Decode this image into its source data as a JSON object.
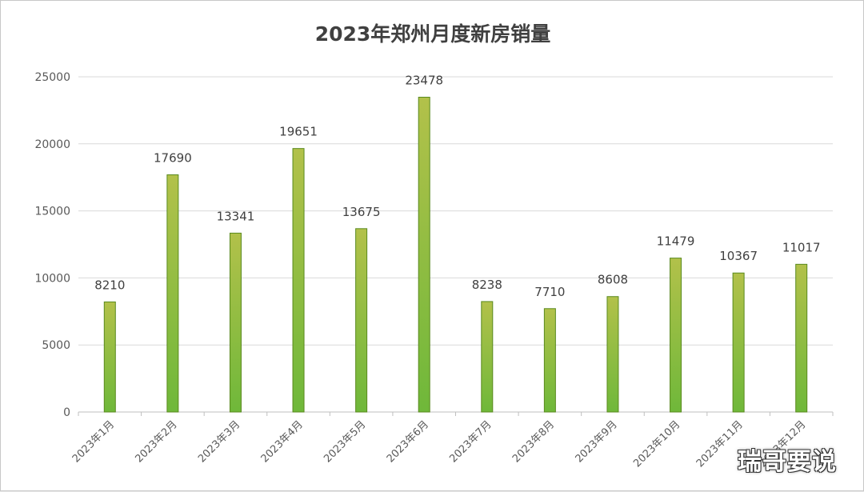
{
  "chart_data": {
    "type": "bar",
    "title": "2023年郑州月度新房销量",
    "xlabel": "",
    "ylabel": "",
    "categories": [
      "2023年1月",
      "2023年2月",
      "2023年3月",
      "2023年4月",
      "2023年5月",
      "2023年6月",
      "2023年7月",
      "2023年8月",
      "2023年9月",
      "2023年10月",
      "2023年11月",
      "2023年12月"
    ],
    "values": [
      8210,
      17690,
      13341,
      19651,
      13675,
      23478,
      8238,
      7710,
      8608,
      11479,
      10367,
      11017
    ],
    "ylim": [
      0,
      25000
    ],
    "yticks": [
      0,
      5000,
      10000,
      15000,
      20000,
      25000
    ],
    "grid": true,
    "legend": "none",
    "data_labels": true
  },
  "colors": {
    "bar_top": "#b2c14a",
    "bar_bottom": "#6fb83a",
    "bar_stroke": "#5a8a1e",
    "gridline": "#d9d9d9"
  },
  "watermark": "瑞哥要说"
}
